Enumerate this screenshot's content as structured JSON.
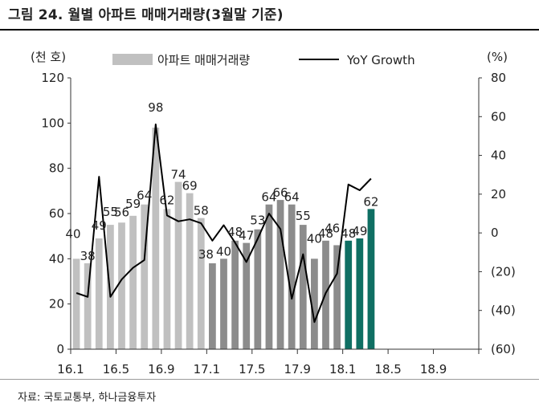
{
  "title": "그림 24. 월별 아파트 매매거래량(3월말 기준)",
  "source": "자료: 국토교통부, 하나금융투자",
  "left_unit": "(천 호)",
  "right_unit": "(%)",
  "colors": {
    "bar_2016": "#c0c0c0",
    "bar_2017": "#8c8c8c",
    "bar_2018": "#0f6f63",
    "line": "#000000"
  },
  "chart_data": {
    "type": "bar",
    "title": "",
    "legend": [
      "아파트 매매거래량",
      "YoY Growth"
    ],
    "legend_position": "top",
    "x": [
      "16.1",
      "16.2",
      "16.3",
      "16.4",
      "16.5",
      "16.6",
      "16.7",
      "16.8",
      "16.9",
      "16.10",
      "16.11",
      "16.12",
      "17.1",
      "17.2",
      "17.3",
      "17.4",
      "17.5",
      "17.6",
      "17.7",
      "17.8",
      "17.9",
      "17.10",
      "17.11",
      "17.12",
      "18.1",
      "18.2",
      "18.3",
      "18.4",
      "18.5",
      "18.6",
      "18.7",
      "18.8",
      "18.9",
      "18.10",
      "18.11",
      "18.12"
    ],
    "x_tick_labels": [
      "16.1",
      "16.5",
      "16.9",
      "17.1",
      "17.5",
      "17.9",
      "18.1",
      "18.5",
      "18.9"
    ],
    "series": [
      {
        "name": "아파트 매매거래량",
        "axis": "left",
        "values": [
          40,
          38,
          49,
          55,
          56,
          59,
          64,
          98,
          62,
          74,
          69,
          58,
          38,
          40,
          48,
          47,
          53,
          64,
          66,
          64,
          55,
          40,
          48,
          46,
          48,
          49,
          62,
          null,
          null,
          null,
          null,
          null,
          null,
          null,
          null,
          null
        ]
      },
      {
        "name": "YoY Growth",
        "axis": "right",
        "type": "line",
        "values": [
          -31,
          -33,
          29,
          -33,
          -24,
          -18,
          -14,
          56,
          9,
          6,
          7,
          5,
          -4,
          4,
          -5,
          -15,
          -3,
          10,
          2,
          -34,
          -11,
          -46,
          -31,
          -21,
          25,
          22,
          28,
          null,
          null,
          null,
          null,
          null,
          null,
          null,
          null,
          null
        ]
      }
    ],
    "bar_labels": [
      40,
      38,
      49,
      55,
      56,
      59,
      64,
      98,
      62,
      74,
      69,
      58,
      38,
      40,
      48,
      47,
      53,
      64,
      66,
      64,
      55,
      40,
      48,
      46,
      48,
      49,
      62
    ],
    "y_left": {
      "lim": [
        0,
        120
      ],
      "ticks": [
        0,
        20,
        40,
        60,
        80,
        100,
        120
      ]
    },
    "y_right": {
      "lim": [
        -60,
        80
      ],
      "ticks": [
        "(60)",
        "(40)",
        "(20)",
        "0",
        "20",
        "40",
        "60",
        "80"
      ]
    },
    "grid": false
  }
}
